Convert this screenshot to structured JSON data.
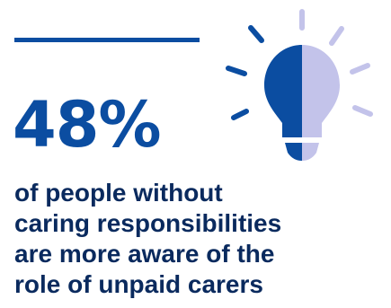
{
  "statistic": {
    "value": "48%",
    "caption_lines": [
      "of people without",
      "caring responsibilities",
      "are more aware of the",
      "role of unpaid carers"
    ]
  },
  "colors": {
    "primary_dark_blue": "#0b4da1",
    "light_lavender": "#c3c3ea",
    "text_navy": "#0a2a5e"
  },
  "icons": {
    "illustration": "lightbulb-icon"
  }
}
